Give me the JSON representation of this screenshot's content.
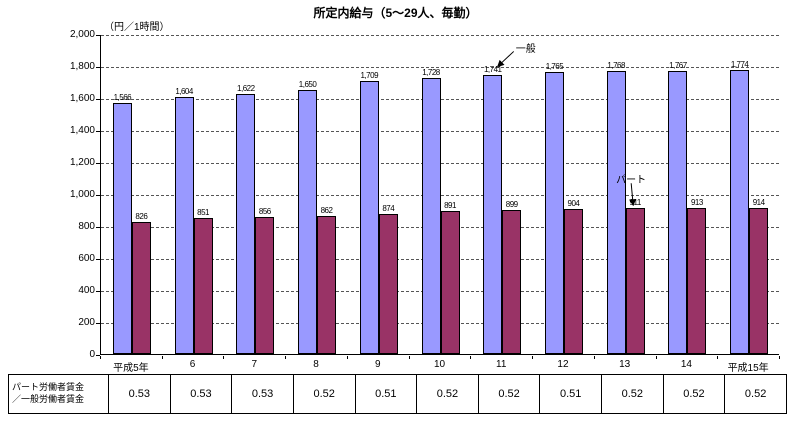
{
  "chart_data": {
    "type": "bar",
    "title": "所定内給与（5～29人、毎勤）",
    "unit_label": "（円／1時間）",
    "categories": [
      "平成5年",
      "6",
      "7",
      "8",
      "9",
      "10",
      "11",
      "12",
      "13",
      "14",
      "平成15年"
    ],
    "series": [
      {
        "name": "一般",
        "color": "#9999FF",
        "values": [
          1566,
          1604,
          1622,
          1650,
          1709,
          1728,
          1741,
          1765,
          1768,
          1767,
          1774
        ]
      },
      {
        "name": "パート",
        "color": "#993366",
        "values": [
          826,
          851,
          856,
          862,
          874,
          891,
          899,
          904,
          911,
          913,
          914
        ]
      }
    ],
    "ylim": [
      0,
      2000
    ],
    "ytick_interval": 200,
    "grid": "horizontal-dashed",
    "legend_position": "none",
    "annotations": [
      {
        "label": "一般",
        "target_series": 0,
        "target_index": 6
      },
      {
        "label": "パート",
        "target_series": 1,
        "target_index": 8
      }
    ]
  },
  "table": {
    "header_line1": "パート労働者賃金",
    "header_line2": "／一般労働者賃金",
    "values": [
      "0.53",
      "0.53",
      "0.53",
      "0.52",
      "0.51",
      "0.52",
      "0.52",
      "0.51",
      "0.52",
      "0.52",
      "0.52"
    ]
  }
}
